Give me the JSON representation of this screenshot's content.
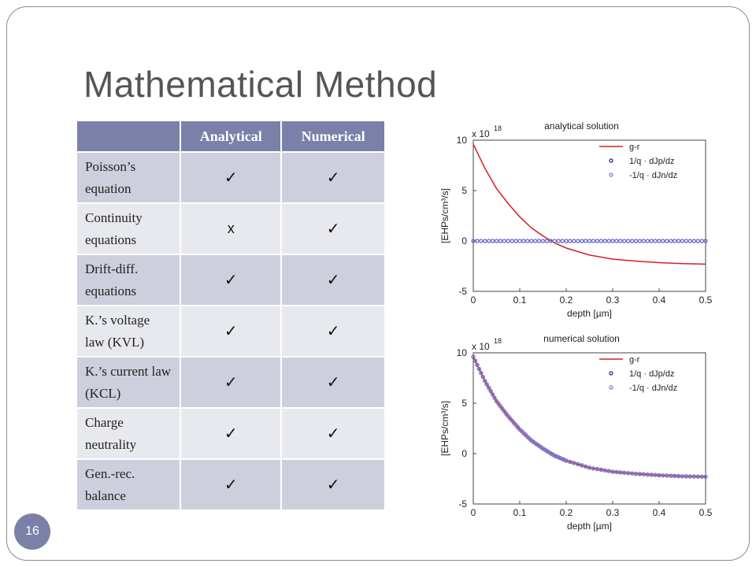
{
  "slide": {
    "title": "Mathematical Method",
    "page_number": "16"
  },
  "table": {
    "headers": [
      "",
      "Analytical",
      "Numerical"
    ],
    "rows": [
      {
        "label": "Poisson’s equation",
        "analytical": "✓",
        "numerical": "✓"
      },
      {
        "label": "Continuity equations",
        "analytical": "x",
        "numerical": "✓"
      },
      {
        "label": "Drift-diff. equations",
        "analytical": "✓",
        "numerical": "✓"
      },
      {
        "label": "K.’s voltage law (KVL)",
        "analytical": "✓",
        "numerical": "✓"
      },
      {
        "label": "K.’s current law (KCL)",
        "analytical": "✓",
        "numerical": "✓"
      },
      {
        "label": "Charge neutrality",
        "analytical": "✓",
        "numerical": "✓"
      },
      {
        "label": "Gen.-rec. balance",
        "analytical": "✓",
        "numerical": "✓"
      }
    ]
  },
  "colors": {
    "accent": "#7b80a8",
    "header_bg": "#7b80a8",
    "row_dark": "#cdd0dc",
    "row_light": "#e8e9ee",
    "g_r": "#d42020",
    "dJp": "#1a1aa0",
    "dJn": "#7878d0"
  },
  "chart_data": [
    {
      "type": "line",
      "title": "analytical solution",
      "xlabel": "depth [µm]",
      "ylabel": "[EHPs/cm³/s]",
      "y_multiplier": "x 10",
      "y_multiplier_exp": "18",
      "xlim": [
        0,
        0.5
      ],
      "ylim": [
        -5,
        10
      ],
      "xticks": [
        "0",
        "0.1",
        "0.2",
        "0.3",
        "0.4",
        "0.5"
      ],
      "yticks": [
        "10",
        "5",
        "0",
        "-5"
      ],
      "legend": {
        "placement": "top-right",
        "entries": [
          "g-r",
          "1/q · dJp/dz",
          "-1/q · dJn/dz"
        ]
      },
      "series": [
        {
          "name": "g-r",
          "style": "line",
          "x": [
            0,
            0.025,
            0.05,
            0.075,
            0.1,
            0.125,
            0.15,
            0.175,
            0.2,
            0.25,
            0.3,
            0.35,
            0.4,
            0.45,
            0.5
          ],
          "y": [
            9.6,
            7.2,
            5.2,
            3.7,
            2.4,
            1.3,
            0.5,
            -0.2,
            -0.7,
            -1.4,
            -1.8,
            -2.0,
            -2.15,
            -2.25,
            -2.3
          ]
        },
        {
          "name": "1/q · dJp/dz",
          "style": "markers",
          "x": [
            0,
            0.05,
            0.1,
            0.15,
            0.2,
            0.25,
            0.3,
            0.35,
            0.4,
            0.45,
            0.5
          ],
          "y": [
            0,
            0,
            0,
            0,
            0,
            0,
            0,
            0,
            0,
            0,
            0
          ]
        },
        {
          "name": "-1/q · dJn/dz",
          "style": "markers",
          "x": [
            0,
            0.05,
            0.1,
            0.15,
            0.2,
            0.25,
            0.3,
            0.35,
            0.4,
            0.45,
            0.5
          ],
          "y": [
            0,
            0,
            0,
            0,
            0,
            0,
            0,
            0,
            0,
            0,
            0
          ]
        }
      ]
    },
    {
      "type": "line",
      "title": "numerical solution",
      "xlabel": "depth [µm]",
      "ylabel": "[EHPs/cm³/s]",
      "y_multiplier": "x 10",
      "y_multiplier_exp": "18",
      "xlim": [
        0,
        0.5
      ],
      "ylim": [
        -5,
        10
      ],
      "xticks": [
        "0",
        "0.1",
        "0.2",
        "0.3",
        "0.4",
        "0.5"
      ],
      "yticks": [
        "10",
        "5",
        "0",
        "-5"
      ],
      "legend": {
        "placement": "top-right",
        "entries": [
          "g-r",
          "1/q · dJp/dz",
          "-1/q · dJn/dz"
        ]
      },
      "series": [
        {
          "name": "g-r",
          "style": "line",
          "x": [
            0,
            0.025,
            0.05,
            0.075,
            0.1,
            0.125,
            0.15,
            0.175,
            0.2,
            0.25,
            0.3,
            0.35,
            0.4,
            0.45,
            0.5
          ],
          "y": [
            9.6,
            7.2,
            5.2,
            3.7,
            2.4,
            1.3,
            0.5,
            -0.2,
            -0.7,
            -1.4,
            -1.8,
            -2.0,
            -2.15,
            -2.25,
            -2.3
          ]
        },
        {
          "name": "1/q · dJp/dz",
          "style": "markers",
          "x": [
            0,
            0.025,
            0.05,
            0.075,
            0.1,
            0.125,
            0.15,
            0.175,
            0.2,
            0.25,
            0.3,
            0.35,
            0.4,
            0.45,
            0.5
          ],
          "y": [
            9.6,
            7.2,
            5.2,
            3.7,
            2.4,
            1.3,
            0.5,
            -0.2,
            -0.7,
            -1.4,
            -1.8,
            -2.0,
            -2.15,
            -2.25,
            -2.3
          ]
        },
        {
          "name": "-1/q · dJn/dz",
          "style": "markers",
          "x": [
            0,
            0.025,
            0.05,
            0.075,
            0.1,
            0.125,
            0.15,
            0.175,
            0.2,
            0.25,
            0.3,
            0.35,
            0.4,
            0.45,
            0.5
          ],
          "y": [
            9.6,
            7.2,
            5.2,
            3.7,
            2.4,
            1.3,
            0.5,
            -0.2,
            -0.7,
            -1.4,
            -1.8,
            -2.0,
            -2.15,
            -2.25,
            -2.3
          ]
        }
      ]
    }
  ]
}
